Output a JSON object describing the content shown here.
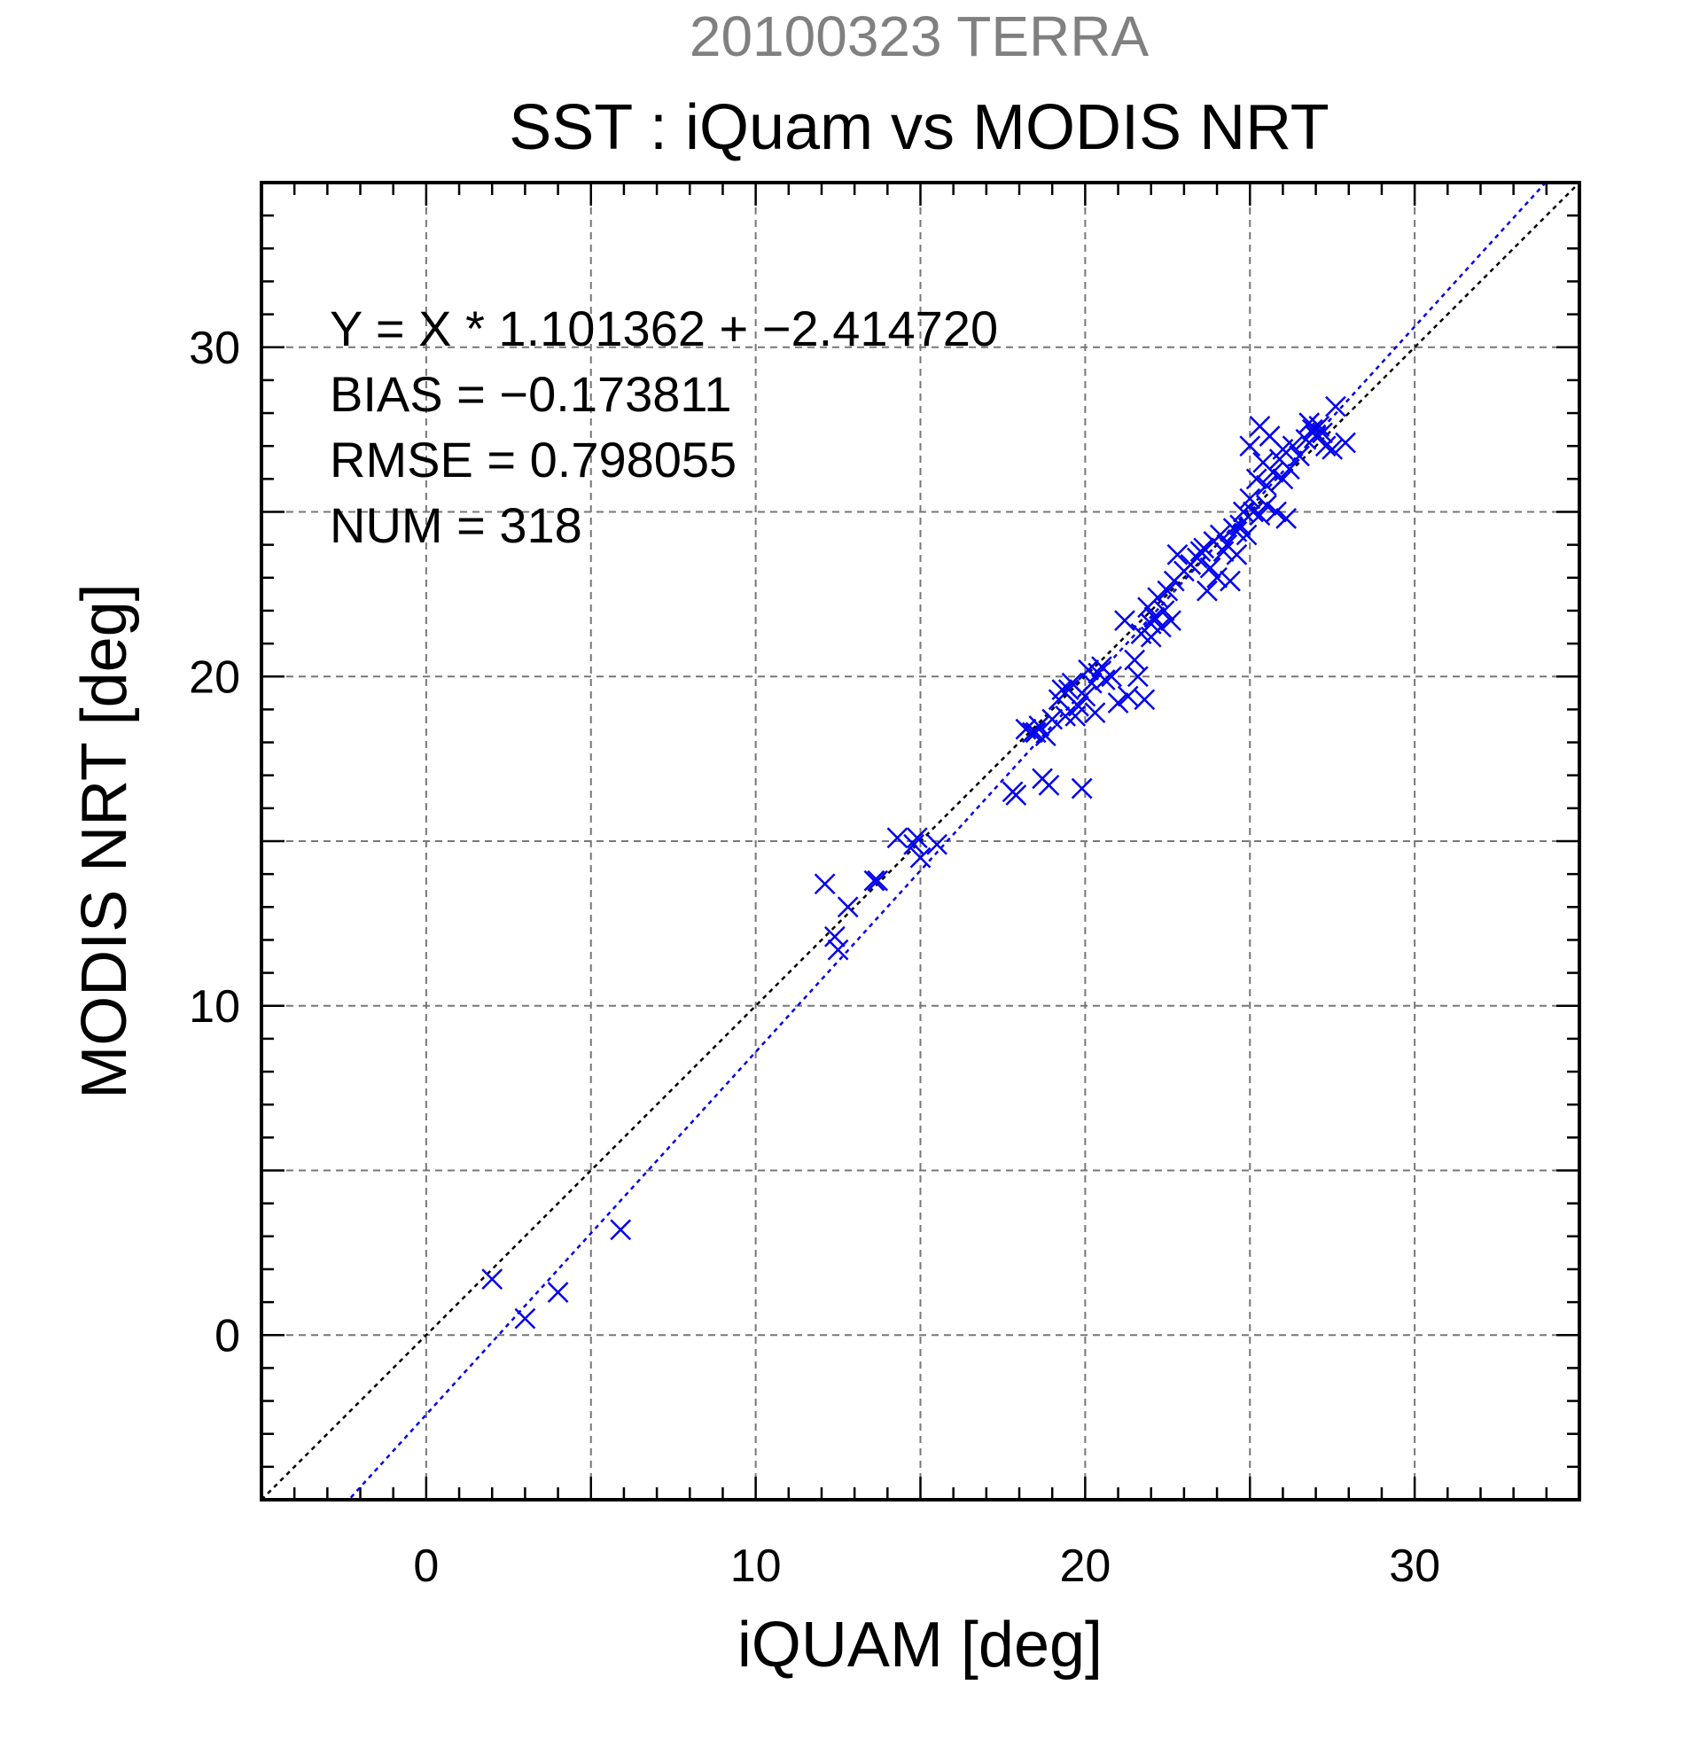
{
  "chart_data": {
    "type": "scatter",
    "supertitle": "20100323 TERRA",
    "title": "SST : iQuam vs MODIS NRT",
    "xlabel": "iQUAM [deg]",
    "ylabel": "MODIS NRT [deg]",
    "xlim": [
      -5,
      35
    ],
    "ylim": [
      -5,
      35
    ],
    "xticks": [
      0,
      10,
      20,
      30
    ],
    "yticks": [
      0,
      10,
      20,
      30
    ],
    "minor_tick_step": 1,
    "grid": true,
    "grid_step": 5,
    "stats": [
      "Y = X * 1.101362 + −2.414720",
      "BIAS = −0.173811",
      "RMSE = 0.798055",
      "NUM = 318"
    ],
    "regression": {
      "slope": 1.101362,
      "intercept": -2.41472,
      "color": "#0000ee",
      "style": "dotted"
    },
    "identity_line": {
      "color": "#000000",
      "style": "dotted"
    },
    "marker": {
      "shape": "x",
      "color": "#0000ee"
    },
    "points": [
      [
        2.0,
        1.7
      ],
      [
        3.0,
        0.5
      ],
      [
        4.0,
        1.3
      ],
      [
        5.9,
        3.2
      ],
      [
        12.1,
        13.7
      ],
      [
        12.4,
        12.1
      ],
      [
        12.5,
        11.7
      ],
      [
        12.8,
        13.0
      ],
      [
        13.6,
        13.8
      ],
      [
        13.7,
        13.8
      ],
      [
        14.3,
        15.1
      ],
      [
        14.8,
        14.9
      ],
      [
        14.9,
        15.1
      ],
      [
        15.0,
        14.5
      ],
      [
        15.5,
        14.9
      ],
      [
        17.8,
        16.5
      ],
      [
        17.9,
        16.4
      ],
      [
        18.2,
        18.4
      ],
      [
        18.4,
        18.3
      ],
      [
        18.6,
        18.5
      ],
      [
        18.7,
        16.9
      ],
      [
        18.8,
        18.2
      ],
      [
        18.9,
        16.7
      ],
      [
        19.0,
        18.7
      ],
      [
        19.2,
        19.3
      ],
      [
        19.3,
        19.6
      ],
      [
        19.4,
        18.8
      ],
      [
        19.6,
        19.8
      ],
      [
        19.7,
        18.8
      ],
      [
        19.8,
        19.1
      ],
      [
        19.9,
        16.6
      ],
      [
        20.0,
        19.4
      ],
      [
        20.1,
        20.2
      ],
      [
        20.2,
        19.8
      ],
      [
        20.3,
        18.9
      ],
      [
        20.4,
        20.1
      ],
      [
        20.6,
        19.9
      ],
      [
        20.8,
        20.0
      ],
      [
        21.0,
        19.2
      ],
      [
        21.2,
        21.7
      ],
      [
        21.3,
        19.4
      ],
      [
        21.5,
        20.5
      ],
      [
        21.6,
        20.0
      ],
      [
        21.7,
        21.3
      ],
      [
        21.8,
        19.3
      ],
      [
        21.9,
        22.1
      ],
      [
        22.0,
        21.2
      ],
      [
        22.1,
        21.8
      ],
      [
        22.2,
        22.4
      ],
      [
        22.3,
        21.5
      ],
      [
        22.4,
        22.0
      ],
      [
        22.5,
        22.6
      ],
      [
        22.6,
        21.7
      ],
      [
        22.7,
        22.9
      ],
      [
        22.8,
        23.7
      ],
      [
        23.0,
        23.2
      ],
      [
        23.2,
        23.4
      ],
      [
        23.4,
        23.6
      ],
      [
        23.6,
        23.9
      ],
      [
        23.7,
        22.6
      ],
      [
        23.8,
        23.3
      ],
      [
        23.9,
        24.1
      ],
      [
        24.0,
        23.0
      ],
      [
        24.1,
        24.3
      ],
      [
        24.2,
        23.8
      ],
      [
        24.3,
        24.0
      ],
      [
        24.4,
        22.9
      ],
      [
        24.5,
        24.5
      ],
      [
        24.6,
        23.7
      ],
      [
        24.7,
        24.6
      ],
      [
        24.8,
        25.0
      ],
      [
        24.9,
        24.3
      ],
      [
        25.0,
        25.4
      ],
      [
        25.1,
        25.0
      ],
      [
        25.2,
        26.0
      ],
      [
        25.3,
        24.9
      ],
      [
        25.4,
        26.5
      ],
      [
        25.5,
        25.2
      ],
      [
        25.6,
        27.3
      ],
      [
        25.7,
        26.2
      ],
      [
        25.8,
        25.0
      ],
      [
        25.9,
        26.6
      ],
      [
        26.0,
        26.9
      ],
      [
        26.1,
        24.8
      ],
      [
        26.2,
        26.3
      ],
      [
        26.3,
        27.0
      ],
      [
        26.5,
        26.7
      ],
      [
        26.7,
        27.2
      ],
      [
        26.9,
        27.5
      ],
      [
        27.0,
        27.3
      ],
      [
        27.1,
        27.6
      ],
      [
        27.3,
        27.0
      ],
      [
        27.5,
        26.9
      ],
      [
        27.6,
        28.2
      ],
      [
        27.9,
        27.1
      ],
      [
        25.0,
        27.0
      ],
      [
        25.3,
        27.6
      ],
      [
        24.6,
        24.4
      ],
      [
        25.5,
        25.8
      ],
      [
        26.0,
        26.0
      ],
      [
        23.5,
        23.8
      ],
      [
        22.0,
        21.6
      ],
      [
        19.5,
        19.6
      ],
      [
        20.5,
        20.3
      ],
      [
        18.5,
        18.3
      ],
      [
        27.2,
        27.4
      ],
      [
        26.8,
        27.7
      ]
    ]
  }
}
